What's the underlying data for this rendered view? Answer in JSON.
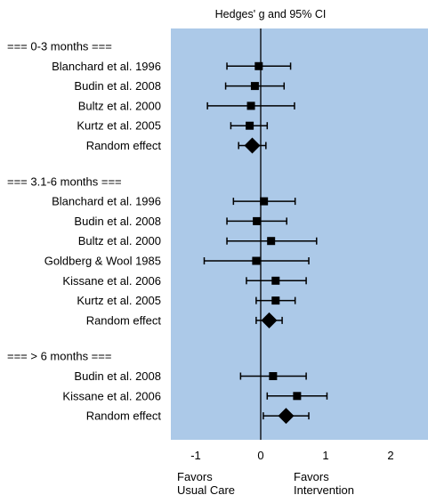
{
  "chart_data": {
    "type": "forest",
    "title": "Hedges' g and 95% CI",
    "xlim": [
      -1.5,
      2.5
    ],
    "x_ticks": [
      "-1",
      "0",
      "1",
      "2"
    ],
    "x_tick_values": [
      -1,
      0,
      1,
      2
    ],
    "footer_left": [
      "Favors",
      "Usual Care"
    ],
    "footer_right": [
      "Favors",
      "Intervention"
    ],
    "colors": {
      "plot_bg": "#acc9e8",
      "marker": "#000000"
    },
    "groups": [
      {
        "header": "===   0-3 months   ===",
        "studies": [
          {
            "label": "Blanchard et al. 1996",
            "g": -0.03,
            "lo": -0.52,
            "hi": 0.46
          },
          {
            "label": "Budin et al. 2008",
            "g": -0.09,
            "lo": -0.54,
            "hi": 0.36
          },
          {
            "label": "Bultz et al. 2000",
            "g": -0.15,
            "lo": -0.82,
            "hi": 0.52
          },
          {
            "label": "Kurtz et al. 2005",
            "g": -0.17,
            "lo": -0.46,
            "hi": 0.1
          }
        ],
        "summary": {
          "label": "Random effect",
          "g": -0.13,
          "lo": -0.34,
          "hi": 0.08
        }
      },
      {
        "header": "===  3.1-6 months  ===",
        "studies": [
          {
            "label": "Blanchard et al. 1996",
            "g": 0.05,
            "lo": -0.42,
            "hi": 0.53
          },
          {
            "label": "Budin et al. 2008",
            "g": -0.06,
            "lo": -0.52,
            "hi": 0.4
          },
          {
            "label": "Bultz et al. 2000",
            "g": 0.16,
            "lo": -0.52,
            "hi": 0.86
          },
          {
            "label": "Goldberg & Wool 1985",
            "g": -0.07,
            "lo": -0.87,
            "hi": 0.74
          },
          {
            "label": "Kissane et al. 2006",
            "g": 0.23,
            "lo": -0.22,
            "hi": 0.7
          },
          {
            "label": "Kurtz et al. 2005",
            "g": 0.23,
            "lo": -0.07,
            "hi": 0.53
          }
        ],
        "summary": {
          "label": "Random effect",
          "g": 0.13,
          "lo": -0.07,
          "hi": 0.33
        }
      },
      {
        "header": "===   > 6 months   ===",
        "studies": [
          {
            "label": "Budin et al. 2008",
            "g": 0.19,
            "lo": -0.31,
            "hi": 0.7
          },
          {
            "label": "Kissane et al. 2006",
            "g": 0.56,
            "lo": 0.1,
            "hi": 1.02
          }
        ],
        "summary": {
          "label": "Random effect",
          "g": 0.39,
          "lo": 0.04,
          "hi": 0.74
        }
      }
    ]
  }
}
